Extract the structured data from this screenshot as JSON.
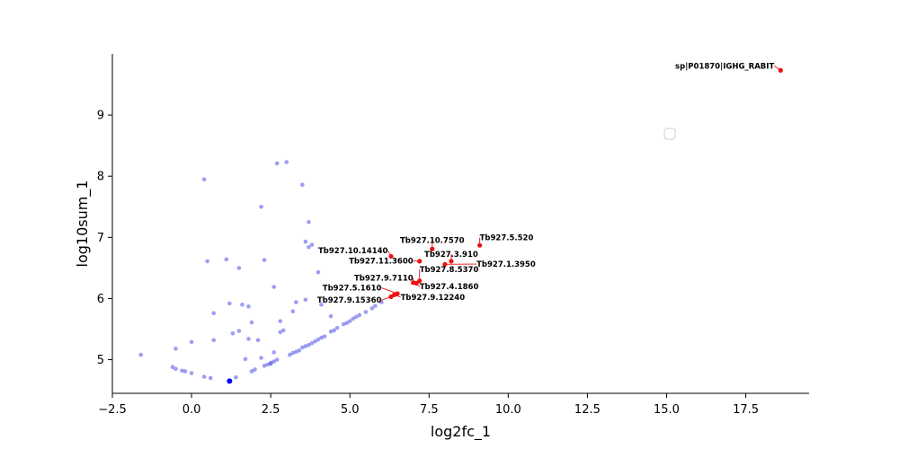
{
  "chart_data": {
    "type": "scatter",
    "title": "",
    "xlabel": "log2fc_1",
    "ylabel": "log10sum_1",
    "xlim": [
      -2.5,
      19.5
    ],
    "ylim": [
      4.45,
      10.0
    ],
    "xticks": [
      -2.5,
      0.0,
      2.5,
      5.0,
      7.5,
      10.0,
      12.5,
      15.0,
      17.5
    ],
    "xtick_labels": [
      "−2.5",
      "0.0",
      "2.5",
      "5.0",
      "7.5",
      "10.0",
      "12.5",
      "15.0",
      "17.5"
    ],
    "yticks": [
      5,
      6,
      7,
      8,
      9
    ],
    "ytick_labels": [
      "5",
      "6",
      "7",
      "8",
      "9"
    ],
    "grid": false,
    "legend": "center-right (empty box)",
    "colors": {
      "background": "#4f4fe8",
      "highlight": "#ee1111",
      "dense": "#0000ff"
    },
    "series": [
      {
        "role": "background",
        "points": [
          [
            -1.6,
            5.08
          ],
          [
            -0.6,
            4.88
          ],
          [
            -0.5,
            4.85
          ],
          [
            -0.5,
            5.18
          ],
          [
            -0.3,
            4.82
          ],
          [
            -0.2,
            4.81
          ],
          [
            0.0,
            4.78
          ],
          [
            0.0,
            5.29
          ],
          [
            0.4,
            4.72
          ],
          [
            0.4,
            7.95
          ],
          [
            0.5,
            6.61
          ],
          [
            0.6,
            4.7
          ],
          [
            0.7,
            5.76
          ],
          [
            0.7,
            5.32
          ],
          [
            1.1,
            6.64
          ],
          [
            1.2,
            5.92
          ],
          [
            1.3,
            5.43
          ],
          [
            1.4,
            4.71
          ],
          [
            1.5,
            6.5
          ],
          [
            1.5,
            5.47
          ],
          [
            1.6,
            5.9
          ],
          [
            1.7,
            5.01
          ],
          [
            1.8,
            5.87
          ],
          [
            1.8,
            5.34
          ],
          [
            1.9,
            5.61
          ],
          [
            1.9,
            4.81
          ],
          [
            2.0,
            4.84
          ],
          [
            2.1,
            5.32
          ],
          [
            2.2,
            7.5
          ],
          [
            2.2,
            5.03
          ],
          [
            2.3,
            6.63
          ],
          [
            2.3,
            4.9
          ],
          [
            2.4,
            4.92
          ],
          [
            2.5,
            4.93
          ],
          [
            2.5,
            4.95
          ],
          [
            2.6,
            4.97
          ],
          [
            2.6,
            5.12
          ],
          [
            2.6,
            6.19
          ],
          [
            2.7,
            8.21
          ],
          [
            2.7,
            5.0
          ],
          [
            2.8,
            5.45
          ],
          [
            2.8,
            5.63
          ],
          [
            2.9,
            5.48
          ],
          [
            3.0,
            8.23
          ],
          [
            3.1,
            5.08
          ],
          [
            3.2,
            5.79
          ],
          [
            3.2,
            5.11
          ],
          [
            3.3,
            5.94
          ],
          [
            3.3,
            5.13
          ],
          [
            3.4,
            5.15
          ],
          [
            3.5,
            7.86
          ],
          [
            3.5,
            5.2
          ],
          [
            3.6,
            5.22
          ],
          [
            3.6,
            5.98
          ],
          [
            3.6,
            6.93
          ],
          [
            3.7,
            6.84
          ],
          [
            3.7,
            5.24
          ],
          [
            3.7,
            7.25
          ],
          [
            3.8,
            5.27
          ],
          [
            3.8,
            6.88
          ],
          [
            3.9,
            5.3
          ],
          [
            4.0,
            5.33
          ],
          [
            4.0,
            6.43
          ],
          [
            4.1,
            5.36
          ],
          [
            4.1,
            5.9
          ],
          [
            4.2,
            5.38
          ],
          [
            4.4,
            5.46
          ],
          [
            4.4,
            5.71
          ],
          [
            4.5,
            5.48
          ],
          [
            4.6,
            5.52
          ],
          [
            4.8,
            5.58
          ],
          [
            4.9,
            5.6
          ],
          [
            5.0,
            5.63
          ],
          [
            5.1,
            5.67
          ],
          [
            5.2,
            5.7
          ],
          [
            5.3,
            5.73
          ],
          [
            5.5,
            5.78
          ],
          [
            5.7,
            5.84
          ],
          [
            5.8,
            5.88
          ],
          [
            6.0,
            5.94
          ]
        ]
      },
      {
        "role": "dense",
        "points": [
          [
            1.2,
            4.65
          ]
        ]
      },
      {
        "role": "highlighted",
        "points": [
          {
            "x": 18.6,
            "y": 9.73,
            "label": "sp|P01870|IGHG_RABIT",
            "anchor": "end",
            "tx": 18.4,
            "ty": 9.76
          },
          {
            "x": 9.1,
            "y": 6.87,
            "label": "Tb927.5.520",
            "anchor": "start",
            "tx": 9.1,
            "ty": 6.95
          },
          {
            "x": 7.6,
            "y": 6.81,
            "label": "Tb927.10.7570",
            "anchor": "middle",
            "tx": 7.6,
            "ty": 6.91
          },
          {
            "x": 6.3,
            "y": 6.69,
            "label": "Tb927.10.14140",
            "anchor": "end",
            "tx": 6.2,
            "ty": 6.74
          },
          {
            "x": 8.2,
            "y": 6.61,
            "label": "Tb927.3.910",
            "anchor": "middle",
            "tx": 8.2,
            "ty": 6.68
          },
          {
            "x": 7.2,
            "y": 6.61,
            "label": "Tb927.11.3600",
            "anchor": "end",
            "tx": 7.0,
            "ty": 6.57
          },
          {
            "x": 8.0,
            "y": 6.56,
            "label": "Tb927.1.3950",
            "anchor": "start",
            "tx": 9.0,
            "ty": 6.52
          },
          {
            "x": 7.2,
            "y": 6.29,
            "label": "Tb927.8.5370",
            "anchor": "start",
            "tx": 7.2,
            "ty": 6.43
          },
          {
            "x": 7.0,
            "y": 6.26,
            "label": "Tb927.9.7110",
            "anchor": "end",
            "tx": 7.0,
            "ty": 6.29
          },
          {
            "x": 7.1,
            "y": 6.25,
            "label": "Tb927.4.1860",
            "anchor": "start",
            "tx": 7.2,
            "ty": 6.15
          },
          {
            "x": 6.5,
            "y": 6.08,
            "label": "Tb927.5.1610",
            "anchor": "end",
            "tx": 6.0,
            "ty": 6.13
          },
          {
            "x": 6.4,
            "y": 6.06,
            "label": "Tb927.9.12240",
            "anchor": "start",
            "tx": 6.6,
            "ty": 5.98
          },
          {
            "x": 6.3,
            "y": 6.03,
            "label": "Tb927.9.15360",
            "anchor": "end",
            "tx": 6.0,
            "ty": 5.93
          }
        ]
      }
    ]
  }
}
